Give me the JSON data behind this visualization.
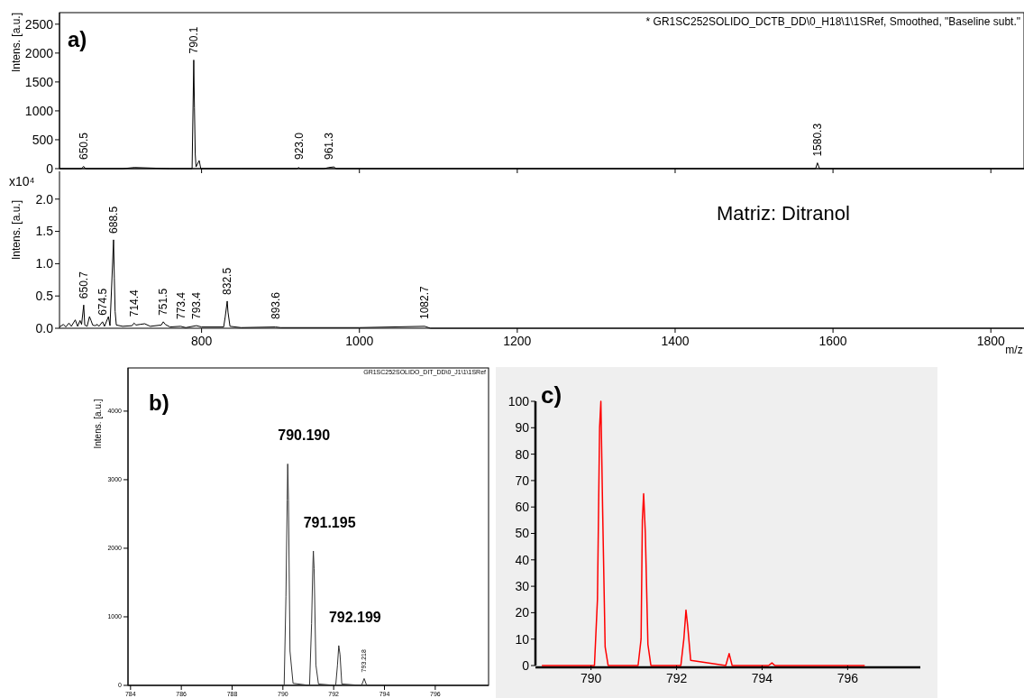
{
  "chart_data": [
    {
      "type": "line",
      "ylabel": "Intens. [a.u.]",
      "xlim": [
        620,
        1842
      ],
      "ylim": [
        0,
        2700
      ],
      "xticks": [
        800,
        1000,
        1200,
        1400,
        1600,
        1800
      ],
      "yticks": [
        0,
        500,
        1000,
        1500,
        2000,
        2500
      ],
      "tick_labels": "y",
      "series": [
        {
          "color": "#000000",
          "x": [
            620,
            648,
            650.5,
            653,
            700,
            715,
            760,
            788,
            790.1,
            791,
            792,
            793,
            797,
            799,
            850,
            921,
            923,
            925,
            955,
            961.3,
            968,
            970,
            1100,
            1578,
            1580.3,
            1583,
            1842
          ],
          "values": [
            0,
            0,
            40,
            0,
            0,
            20,
            0,
            0,
            1880,
            1050,
            250,
            30,
            140,
            0,
            0,
            0,
            20,
            0,
            0,
            20,
            30,
            0,
            0,
            0,
            100,
            0,
            0
          ]
        }
      ],
      "annotations": [
        "a)",
        "* GR1SC252SOLIDO_DCTB_DD\\0_H18\\1\\1SRef, Smoothed, \"Baseline subt.\"",
        {
          "text": "650.5",
          "x": 650.5,
          "y": 40
        },
        {
          "text": "790.1",
          "x": 790.1,
          "y": 1880
        },
        {
          "text": "923.0",
          "x": 923,
          "y": 20
        },
        {
          "text": "961.3",
          "x": 961.3,
          "y": 20
        },
        {
          "text": "1580.3",
          "x": 1580.3,
          "y": 100
        }
      ]
    },
    {
      "type": "line",
      "ylabel": "Intens. [a.u.]",
      "xlabel": "m/z",
      "xlim": [
        620,
        1842
      ],
      "ylim": [
        0,
        2.43
      ],
      "xticks": [
        800,
        1000,
        1200,
        1400,
        1600,
        1800
      ],
      "yticks": [
        {
          "value": 0,
          "label": "0.0"
        },
        {
          "value": 0.5,
          "label": "0.5"
        },
        {
          "value": 1,
          "label": "1.0"
        },
        {
          "value": 1.5,
          "label": "1.5"
        },
        {
          "value": 2,
          "label": "2.0"
        }
      ],
      "series": [
        {
          "color": "#000000",
          "x": [
            620,
            625,
            628,
            632,
            635,
            640,
            643,
            646,
            648,
            650.7,
            652,
            655,
            658,
            660,
            662,
            665,
            668,
            670,
            674.5,
            677,
            682,
            684,
            688.5,
            689.5,
            690.5,
            692,
            700,
            712,
            714.4,
            717,
            722,
            728,
            735,
            749,
            751.5,
            754,
            760,
            773.4,
            780,
            793.4,
            800,
            828,
            830,
            832.5,
            833.5,
            836,
            850,
            893.6,
            900,
            1000,
            1082.7,
            1090,
            1842
          ],
          "values": [
            0.02,
            0.06,
            0.02,
            0.08,
            0.03,
            0.13,
            0.03,
            0.12,
            0.06,
            0.36,
            0.05,
            0.03,
            0.18,
            0.12,
            0.05,
            0.04,
            0.06,
            0.03,
            0.1,
            0.03,
            0.18,
            0.04,
            1.37,
            0.78,
            0.26,
            0.05,
            0.03,
            0.04,
            0.08,
            0.05,
            0.06,
            0.07,
            0.03,
            0.05,
            0.1,
            0.06,
            0.02,
            0.03,
            0.01,
            0.04,
            0.02,
            0.02,
            0.18,
            0.42,
            0.25,
            0.03,
            0.01,
            0.02,
            0.01,
            0.01,
            0.03,
            0,
            0
          ]
        }
      ],
      "annotations": [
        "x10⁴",
        "Matriz: Ditranol",
        {
          "text": "650.7",
          "x": 650.7,
          "y": 0.36
        },
        {
          "text": "674.5",
          "x": 674.5,
          "y": 0.1
        },
        {
          "text": "688.5",
          "x": 688.5,
          "y": 1.37
        },
        {
          "text": "714.4",
          "x": 714.4,
          "y": 0.08
        },
        {
          "text": "751.5",
          "x": 751.5,
          "y": 0.1
        },
        {
          "text": "773.4",
          "x": 773.4,
          "y": 0.03
        },
        {
          "text": "793.4",
          "x": 793.4,
          "y": 0.04
        },
        {
          "text": "832.5",
          "x": 832.5,
          "y": 0.42
        },
        {
          "text": "893.6",
          "x": 893.6,
          "y": 0.02
        },
        {
          "text": "1082.7",
          "x": 1082.7,
          "y": 0.03
        }
      ]
    },
    {
      "type": "line",
      "ylabel": "Intens. [a.u.]",
      "xlim": [
        783.9,
        798.1
      ],
      "ylim": [
        0,
        4630
      ],
      "xticks": [
        784,
        786,
        788,
        790,
        792,
        794,
        796
      ],
      "yticks": [
        0,
        1000,
        2000,
        3000,
        4000
      ],
      "series": [
        {
          "color": "#333333",
          "x": [
            783.9,
            790.05,
            790.12,
            790.17,
            790.19,
            790.22,
            790.28,
            790.4,
            791.05,
            791.13,
            791.18,
            791.2,
            791.23,
            791.3,
            791.4,
            792.08,
            792.15,
            792.2,
            792.25,
            792.32,
            793.1,
            793.2,
            793.3,
            798.1
          ],
          "values": [
            0,
            0,
            1300,
            2700,
            3230,
            2700,
            500,
            30,
            0,
            900,
            1750,
            1960,
            1700,
            300,
            20,
            0,
            300,
            580,
            450,
            20,
            0,
            100,
            0,
            0
          ]
        }
      ],
      "annotations": [
        "b)",
        "GR1SC252SOLIDO_DIT_DD\\0_J1\\1\\1SRef",
        {
          "text": "790.190",
          "x": 790.19,
          "y": 3230
        },
        {
          "text": "791.195",
          "x": 791.2,
          "y": 1960
        },
        {
          "text": "792.199",
          "x": 792.2,
          "y": 580
        },
        {
          "text": "793.218",
          "x": 793.2,
          "y": 100
        }
      ]
    },
    {
      "type": "line",
      "xlim": [
        788.7,
        797.7
      ],
      "ylim": [
        0,
        100
      ],
      "xticks": [
        790,
        792,
        794,
        796
      ],
      "yticks": [
        0,
        10,
        20,
        30,
        40,
        50,
        60,
        70,
        80,
        90,
        100
      ],
      "series": [
        {
          "color": "#ff0000",
          "x": [
            788.85,
            790.08,
            790.15,
            790.2,
            790.23,
            790.27,
            790.33,
            790.4,
            791.1,
            791.17,
            791.2,
            791.23,
            791.27,
            791.33,
            791.4,
            792.1,
            792.17,
            792.22,
            792.26,
            792.33,
            793.15,
            793.23,
            793.3,
            794.15,
            794.23,
            794.3,
            796.4
          ],
          "values": [
            0,
            0,
            25,
            90,
            100,
            60,
            7,
            0,
            0,
            10,
            55,
            65,
            50,
            8,
            0,
            0,
            10,
            21,
            15,
            2,
            0,
            4.5,
            0,
            0,
            1,
            0,
            0
          ]
        }
      ],
      "annotations": [
        "c)"
      ]
    }
  ]
}
